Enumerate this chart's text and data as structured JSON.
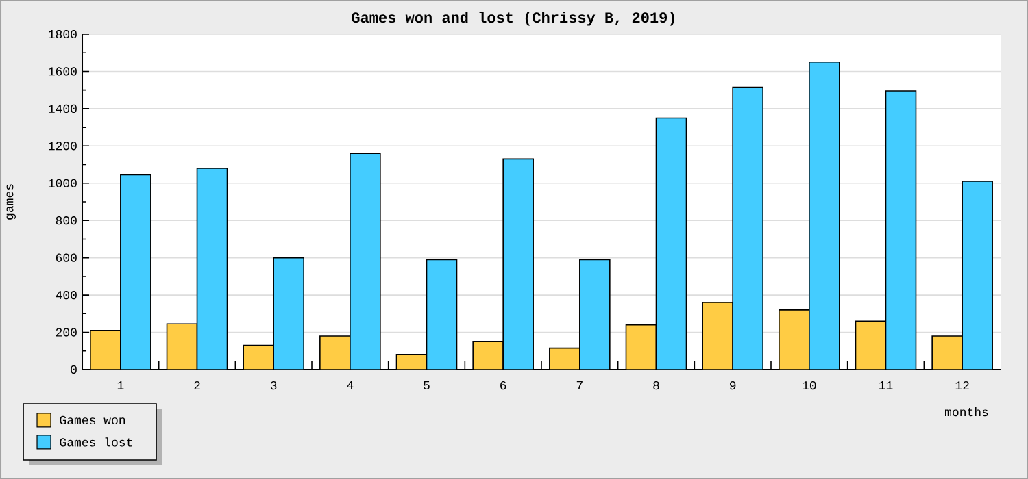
{
  "chart_data": {
    "type": "bar",
    "title": "Games won and lost (Chrissy B, 2019)",
    "xlabel": "months",
    "ylabel": "games",
    "categories": [
      "1",
      "2",
      "3",
      "4",
      "5",
      "6",
      "7",
      "8",
      "9",
      "10",
      "11",
      "12"
    ],
    "series": [
      {
        "name": "Games won",
        "color": "#ffcc44",
        "values": [
          210,
          245,
          130,
          180,
          80,
          150,
          115,
          240,
          360,
          320,
          260,
          180
        ]
      },
      {
        "name": "Games lost",
        "color": "#44ccff",
        "values": [
          1045,
          1080,
          600,
          1160,
          590,
          1130,
          590,
          1350,
          1515,
          1650,
          1495,
          1010
        ]
      }
    ],
    "ylim": [
      0,
      1800
    ],
    "yticks": [
      0,
      200,
      400,
      600,
      800,
      1000,
      1200,
      1400,
      1600,
      1800
    ],
    "grid": "y",
    "legend": "bottom left"
  }
}
